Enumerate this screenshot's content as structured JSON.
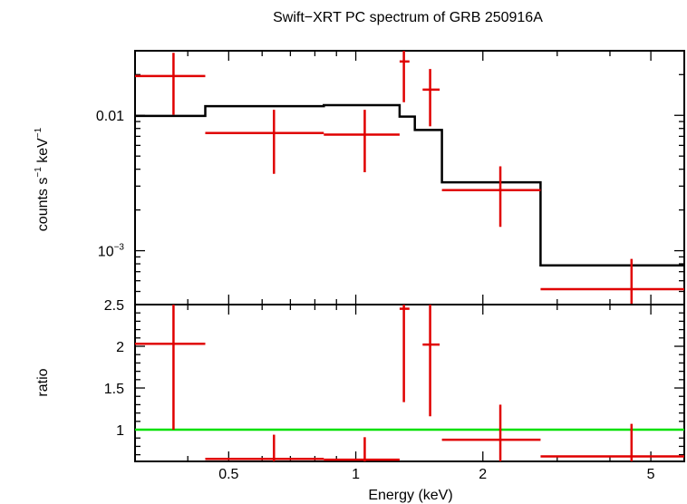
{
  "chart_data": {
    "title": "Swift−XRT PC spectrum of GRB 250916A",
    "type": "scatter",
    "x_axis": {
      "label": "Energy (keV)",
      "scale": "log",
      "range": [
        0.3,
        6.0
      ],
      "major_ticks": [
        0.5,
        1,
        2,
        5
      ],
      "tick_labels": [
        "0.5",
        "1",
        "2",
        "5"
      ]
    },
    "panels": [
      {
        "id": "spectrum",
        "ylabel": {
          "base": "counts s",
          "sup1": "−1",
          "mid": " keV",
          "sup2": "−1"
        },
        "y_scale": "log",
        "ylim": [
          0.0004,
          0.03
        ],
        "y_tick_labels": [
          {
            "value": 0.01,
            "text": "0.01"
          },
          {
            "value": 0.001,
            "base": "10",
            "sup": "−3"
          }
        ],
        "series": [
          {
            "kind": "data",
            "color": "#e00000",
            "points": [
              {
                "x": 0.37,
                "xlo": 0.3,
                "xhi": 0.44,
                "y": 0.0195,
                "ylo": 0.0101,
                "yhi": 0.029
              },
              {
                "x": 0.64,
                "xlo": 0.44,
                "xhi": 0.84,
                "y": 0.0074,
                "ylo": 0.0037,
                "yhi": 0.011
              },
              {
                "x": 1.05,
                "xlo": 0.84,
                "xhi": 1.27,
                "y": 0.0072,
                "ylo": 0.0038,
                "yhi": 0.011
              },
              {
                "x": 1.3,
                "xlo": 1.27,
                "xhi": 1.34,
                "y": 0.025,
                "ylo": 0.0125,
                "yhi": 0.04
              },
              {
                "x": 1.5,
                "xlo": 1.44,
                "xhi": 1.58,
                "y": 0.0155,
                "ylo": 0.0083,
                "yhi": 0.022
              },
              {
                "x": 2.2,
                "xlo": 1.6,
                "xhi": 2.74,
                "y": 0.0028,
                "ylo": 0.0015,
                "yhi": 0.0042
              },
              {
                "x": 4.5,
                "xlo": 2.74,
                "xhi": 6.0,
                "y": 0.00052,
                "ylo": 0.0003,
                "yhi": 0.00087
              }
            ]
          },
          {
            "kind": "model",
            "color": "#000000",
            "steps": [
              {
                "xlo": 0.3,
                "xhi": 0.44,
                "y": 0.0099
              },
              {
                "xlo": 0.44,
                "xhi": 0.84,
                "y": 0.0117
              },
              {
                "xlo": 0.84,
                "xhi": 1.27,
                "y": 0.0119
              },
              {
                "xlo": 1.27,
                "xhi": 1.38,
                "y": 0.0098
              },
              {
                "xlo": 1.38,
                "xhi": 1.6,
                "y": 0.0078
              },
              {
                "xlo": 1.6,
                "xhi": 2.74,
                "y": 0.0032
              },
              {
                "xlo": 2.74,
                "xhi": 6.0,
                "y": 0.00078
              }
            ]
          }
        ]
      },
      {
        "id": "ratio",
        "ylabel": "ratio",
        "y_scale": "linear",
        "ylim": [
          0.62,
          2.5
        ],
        "y_ticks": [
          1,
          1.5,
          2,
          2.5
        ],
        "y_tick_labels": [
          "1",
          "1.5",
          "2",
          "2.5"
        ],
        "reference_line": {
          "y": 1,
          "color": "#00e000"
        },
        "series": [
          {
            "kind": "data",
            "color": "#e00000",
            "points": [
              {
                "x": 0.37,
                "xlo": 0.3,
                "xhi": 0.44,
                "y": 2.03,
                "ylo": 1.0,
                "yhi": 2.5
              },
              {
                "x": 0.64,
                "xlo": 0.44,
                "xhi": 0.84,
                "y": 0.65,
                "ylo": 0.62,
                "yhi": 0.94
              },
              {
                "x": 1.05,
                "xlo": 0.84,
                "xhi": 1.27,
                "y": 0.64,
                "ylo": 0.62,
                "yhi": 0.91
              },
              {
                "x": 1.3,
                "xlo": 1.27,
                "xhi": 1.34,
                "y": 2.45,
                "ylo": 1.33,
                "yhi": 2.5
              },
              {
                "x": 1.5,
                "xlo": 1.44,
                "xhi": 1.58,
                "y": 2.02,
                "ylo": 1.16,
                "yhi": 2.5
              },
              {
                "x": 2.2,
                "xlo": 1.6,
                "xhi": 2.74,
                "y": 0.88,
                "ylo": 0.62,
                "yhi": 1.3
              },
              {
                "x": 4.5,
                "xlo": 2.74,
                "xhi": 6.0,
                "y": 0.68,
                "ylo": 0.62,
                "yhi": 1.07
              }
            ]
          }
        ]
      }
    ]
  }
}
